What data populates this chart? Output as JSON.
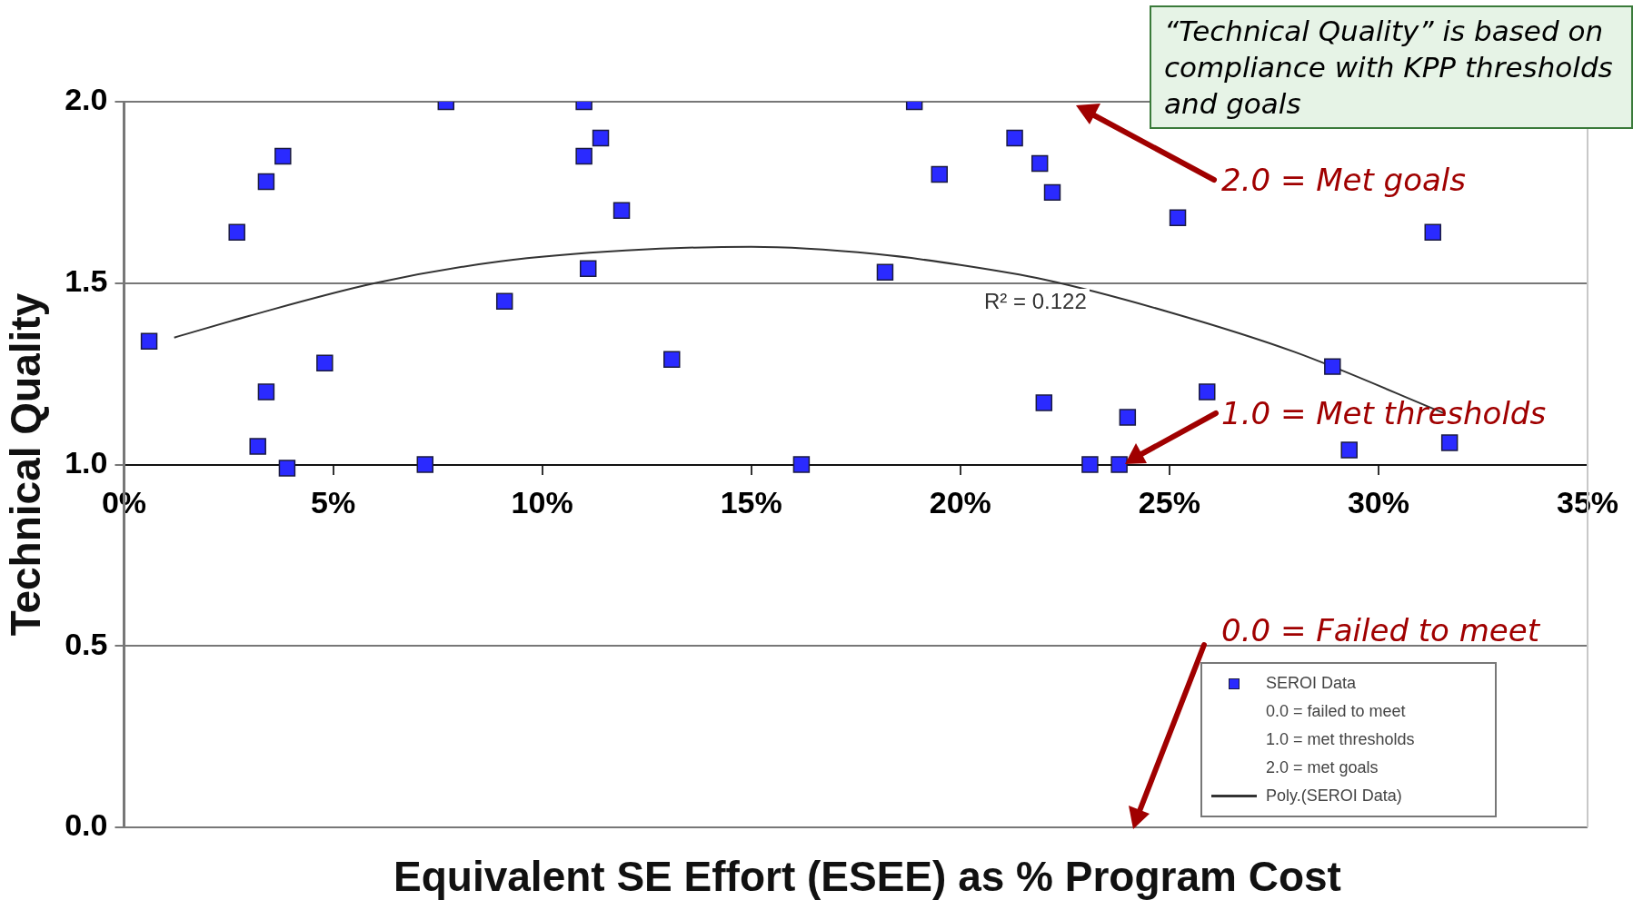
{
  "chart_data": {
    "type": "scatter",
    "xlabel": "Equivalent SE Effort (ESEE) as % Program Cost",
    "ylabel": "Technical Quality",
    "xlim": [
      0,
      35
    ],
    "xticks": [
      {
        "value": 0,
        "label": "0%"
      },
      {
        "value": 5,
        "label": "5%"
      },
      {
        "value": 10,
        "label": "10%"
      },
      {
        "value": 15,
        "label": "15%"
      },
      {
        "value": 20,
        "label": "20%"
      },
      {
        "value": 25,
        "label": "25%"
      },
      {
        "value": 30,
        "label": "30%"
      },
      {
        "value": 35,
        "label": "35%"
      }
    ],
    "ylim": [
      0,
      2
    ],
    "yticks": [
      {
        "value": 0,
        "label": "0.0"
      },
      {
        "value": 0.5,
        "label": "0.5"
      },
      {
        "value": 1,
        "label": "1.0"
      },
      {
        "value": 1.5,
        "label": "1.5"
      },
      {
        "value": 2,
        "label": "2.0"
      }
    ],
    "grid": "y",
    "legend": "bottom right",
    "series": [
      {
        "name": "SEROI Data",
        "marker": "square",
        "color": "#2a2aff",
        "x": [
          0.6,
          2.7,
          3.4,
          3.8,
          3.2,
          3.4,
          3.9,
          4.8,
          7.2,
          7.7,
          9.1,
          11.0,
          11.0,
          11.4,
          11.1,
          11.9,
          13.1,
          16.2,
          18.2,
          18.9,
          19.5,
          21.3,
          21.9,
          22.2,
          22.0,
          23.1,
          23.8,
          24.0,
          25.2,
          25.9,
          28.9,
          29.3,
          31.3,
          31.7
        ],
        "values": [
          1.34,
          1.64,
          1.78,
          1.85,
          1.05,
          1.2,
          0.99,
          1.28,
          1.0,
          2.0,
          1.45,
          2.0,
          1.85,
          1.9,
          1.54,
          1.7,
          1.29,
          1.0,
          1.53,
          2.0,
          1.8,
          1.9,
          1.83,
          1.75,
          1.17,
          1.0,
          1.0,
          1.13,
          1.68,
          1.2,
          1.27,
          1.04,
          1.64,
          1.06
        ]
      },
      {
        "name": "Poly.(SEROI Data)",
        "type": "line",
        "marker": "none",
        "color": "#333333",
        "line_style": "solid",
        "x": [
          1.2,
          3,
          6,
          9,
          12,
          15,
          18,
          20,
          22,
          25,
          28,
          31.6
        ],
        "values": [
          1.35,
          1.41,
          1.5,
          1.56,
          1.59,
          1.6,
          1.58,
          1.55,
          1.51,
          1.42,
          1.31,
          1.14
        ]
      }
    ],
    "annotations": [
      "“Technical Quality” is based on compliance with KPP thresholds and goals",
      "2.0 = Met goals",
      "1.0 = Met thresholds",
      "0.0 = Failed to meet",
      "R² = 0.122",
      "0.0 = failed to meet",
      "1.0 = met thresholds",
      "2.0 = met goals"
    ]
  }
}
